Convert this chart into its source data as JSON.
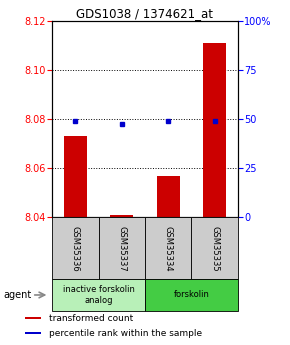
{
  "title": "GDS1038 / 1374621_at",
  "samples": [
    "GSM35336",
    "GSM35337",
    "GSM35334",
    "GSM35335"
  ],
  "red_values": [
    8.073,
    8.041,
    8.057,
    8.111
  ],
  "blue_values": [
    8.079,
    8.078,
    8.079,
    8.079
  ],
  "ylim_left": [
    8.04,
    8.12
  ],
  "ylim_right": [
    0,
    100
  ],
  "yticks_left": [
    8.04,
    8.06,
    8.08,
    8.1,
    8.12
  ],
  "yticks_right": [
    0,
    25,
    50,
    75,
    100
  ],
  "ytick_labels_right": [
    "0",
    "25",
    "50",
    "75",
    "100%"
  ],
  "groups": [
    {
      "label": "inactive forskolin\nanalog",
      "samples": [
        0,
        1
      ],
      "color": "#b8f0b8"
    },
    {
      "label": "forskolin",
      "samples": [
        2,
        3
      ],
      "color": "#44cc44"
    }
  ],
  "agent_label": "agent",
  "legend": [
    {
      "color": "#cc0000",
      "label": "transformed count"
    },
    {
      "color": "#0000cc",
      "label": "percentile rank within the sample"
    }
  ],
  "bar_color": "#cc0000",
  "dot_color": "#0000cc",
  "bar_width": 0.5,
  "bar_bottom": 8.04,
  "sample_box_color": "#cccccc",
  "title_fontsize": 8.5,
  "tick_fontsize": 7,
  "label_fontsize": 6.5,
  "legend_fontsize": 6.5
}
